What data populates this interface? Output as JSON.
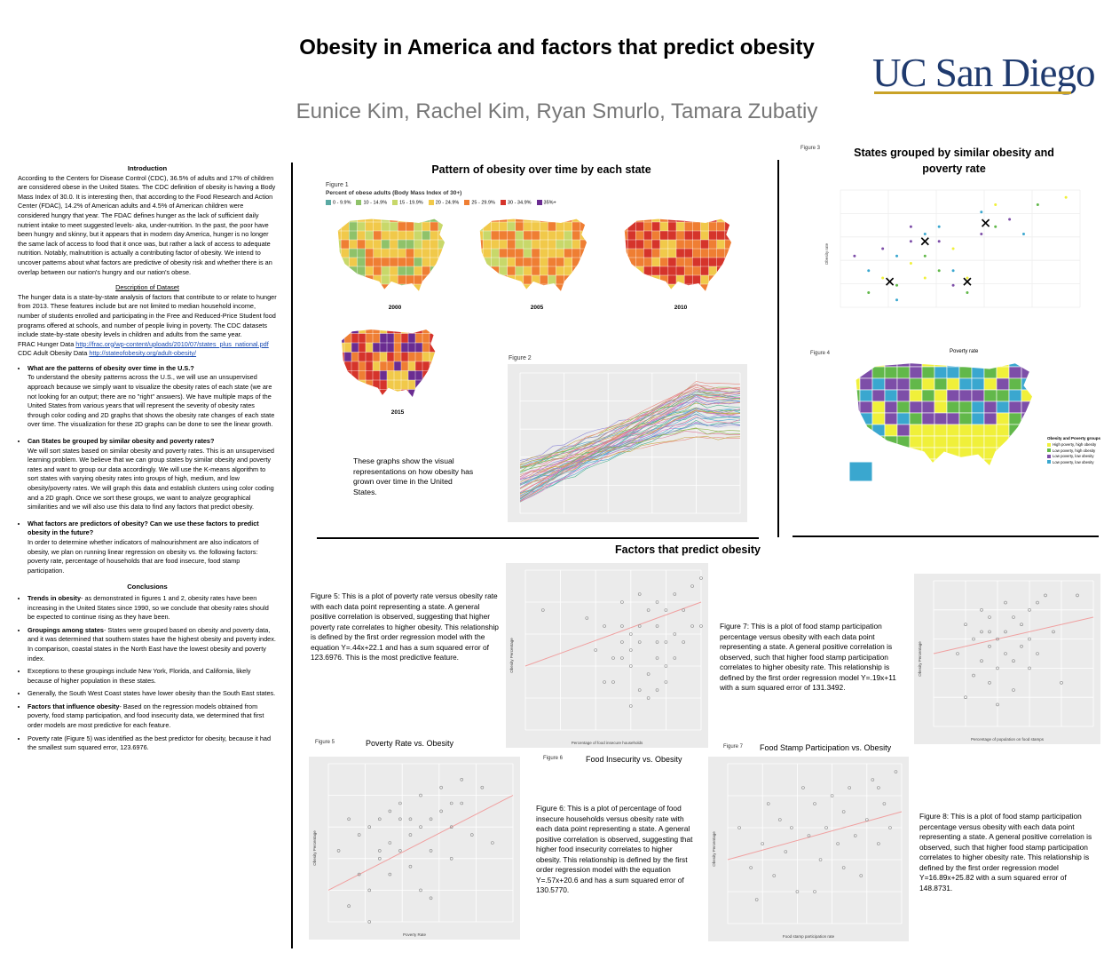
{
  "header": {
    "title": "Obesity in America and factors that predict obesity",
    "authors": "Eunice Kim, Rachel Kim, Ryan Smurlo, Tamara Zubatiy",
    "logo_text": "UC San Diego",
    "logo_color": "#1f3a6e",
    "logo_accent": "#c9a227"
  },
  "left": {
    "intro_heading": "Introduction",
    "intro_text": "According to the Centers for Disease Control (CDC), 36.5% of adults and 17% of children are considered obese in the United States. The CDC definition of obesity is having a Body Mass Index of 30.0. It is interesting then, that according to the Food Research and Action Center (FDAC), 14.2% of American adults and 4.5% of American children were considered hungry that year. The FDAC defines hunger as the lack of sufficient daily nutrient intake to meet suggested levels- aka, under-nutrition. In the past, the poor have been hungry and skinny, but it appears that in modern day America, hunger is no longer the same lack of access to food that it once was, but rather a lack of access to adequate nutrition. Notably, malnutrition is actually a contributing factor of obesity. We intend to uncover patterns about what factors are predictive of obesity risk and whether there is an overlap between our nation's hungry and our nation's obese.",
    "dataset_heading": "Description of Dataset",
    "dataset_text": "The hunger data is a state-by-state analysis of factors that contribute to or relate to hunger from 2013. These features include but are not limited to median household income, number of students enrolled and participating in the Free and Reduced-Price Student food programs offered at schools, and number of people living in poverty. The CDC datasets include state-by-state obesity levels in children and adults from the same year.",
    "frac_label": "FRAC Hunger Data",
    "frac_link": "http://frac.org/wp-content/uploads/2010/07/states_plus_national.pdf",
    "cdc_label": "CDC Adult Obesity Data",
    "cdc_link": "http://stateofobesity.org/adult-obesity/",
    "q1": "What are the patterns of obesity over time in the U.S.?",
    "q1_text": "To understand the obesity patterns across the U.S., we will use an unsupervised approach because we simply want to visualize the obesity rates of each state (we are not looking for an output; there are no \"right\" answers). We have multiple maps of the United States from various years that will represent the severity of obesity rates through color coding and 2D graphs that shows the obesity rate changes of each state over time. The visualization for these 2D graphs can be done to see the linear growth.",
    "q2": "Can States be grouped by similar obesity and poverty rates?",
    "q2_text": "We will sort states based on similar obesity and poverty rates. This is an unsupervised learning problem. We believe that we can group states by similar obesity and poverty rates and want to group our data accordingly. We will use the K-means algorithm to sort states with varying obesity rates into groups of high, medium, and low obesity/poverty rates. We will graph this data and establish clusters using color coding and a 2D graph. Once we sort these groups, we want to analyze geographical similarities and we will also use this data to find any factors that predict obesity.",
    "q3": "What factors are predictors of obesity? Can we use these factors to predict obesity in the future?",
    "q3_text": "In order to determine whether indicators of malnourishment are also indicators of obesity, we plan on running linear regression on obesity vs. the following factors: poverty rate, percentage of households that are food insecure, food stamp participation.",
    "conclusions_heading": "Conclusions",
    "c1_bold": "Trends in obesity",
    "c1": "- as demonstrated in figures 1 and 2, obesity rates have been increasing in the United States since 1990, so we conclude that obesity rates should be expected to continue rising as they have been.",
    "c2_bold": "Groupings among states",
    "c2": "- States were grouped based on obesity and poverty data, and it was determined that southern states have the highest obesity and poverty index. In comparison, coastal states in the North East have the lowest obesity and poverty index.",
    "c3": "Exceptions to these groupings include New York, Florida, and California, likely because of higher population in these states.",
    "c4": "Generally, the South West Coast states have lower obesity than the South East states.",
    "c5_bold": "Factors that influence obesity",
    "c5": "- Based on the regression models obtained from poverty, food stamp participation, and food insecurity data, we determined that first order models are most predictive for each feature.",
    "c6": "Poverty rate (Figure 5) was identified as the best predictor for obesity, because it had the smallest sum squared error, 123.6976."
  },
  "middle": {
    "pattern_title": "Pattern of obesity over time by each state",
    "fig1_label": "Figure 1",
    "fig1_heading": "Percent of obese adults (Body Mass Index of 30+)",
    "legend": [
      {
        "label": "0 - 9.9%",
        "color": "#5aa9a3"
      },
      {
        "label": "10 - 14.9%",
        "color": "#8fc26a"
      },
      {
        "label": "15 - 19.9%",
        "color": "#c8d86a"
      },
      {
        "label": "20 - 24.9%",
        "color": "#f1c94a"
      },
      {
        "label": "25 - 29.9%",
        "color": "#ef7e33"
      },
      {
        "label": "30 - 34.9%",
        "color": "#d5342b"
      },
      {
        "label": "35%+",
        "color": "#6a2c91"
      }
    ],
    "years": [
      "2000",
      "2005",
      "2010",
      "2015"
    ],
    "fig2_label": "Figure 2",
    "fig2_caption": "These graphs show the visual representations on how obesity has grown over time in the United States."
  },
  "right": {
    "fig3_label": "Figure 3",
    "groups_title": "States grouped by similar obesity and poverty rate",
    "fig3_ylabel": "Obesity rate",
    "fig4_label": "Figure 4",
    "fig4_title": "Poverty rate",
    "fig4_legend_title": "Obesity and Poverty groups",
    "fig4_legend": [
      {
        "label": "High poverty, high obesity",
        "color": "#f0f03a"
      },
      {
        "label": "Low poverty, high obesity",
        "color": "#62b84a"
      },
      {
        "label": "Low poverty, low obesity",
        "color": "#7d4ea8"
      },
      {
        "label": "Low poverty, low obesity",
        "color": "#3aa7cf"
      }
    ]
  },
  "factors": {
    "title": "Factors that predict obesity",
    "fig5_caption": "Figure 5: This is a plot of poverty rate versus obesity rate with each data point representing a state. A general positive correlation is observed, suggesting that higher poverty rate correlates to higher obesity. This relationship is defined by the first order regression model with the equation Y=.44x+22.1 and has a sum squared error of 123.6976. This is the most predictive feature.",
    "fig5_label": "Figure 5",
    "fig5_title": "Poverty Rate vs. Obesity",
    "fig6_label": "Figure 6",
    "fig6_title": "Food Insecurity vs. Obesity",
    "fig6_caption": "Figure 6: This is a plot of percentage of food insecure households versus obesity rate with each data point representing a state. A general positive correlation is observed, suggesting that higher food insecurity correlates to higher obesity. This relationship is defined by the first order regression model with the equation Y=.57x+20.6 and has a sum squared error of 130.5770.",
    "fig7_label": "Figure 7",
    "fig7_title": "Food Stamp Participation vs. Obesity",
    "fig7_caption": "Figure 7: This is a plot of food stamp participation percentage versus obesity with each data point representing a state. A general positive correlation is observed, such that higher food stamp participation correlates to higher obesity rate. This relationship is defined by the first order regression model Y=.19x+11 with a sum squared error of 131.3492.",
    "fig8_caption": "Figure 8: This is a plot of food stamp participation percentage versus obesity with each data point representing a state. A general positive correlation is observed, such that higher food stamp participation correlates to higher obesity rate. This relationship is defined by the first order regression model Y=16.89x+25.82 with a sum squared error of 148.8731.",
    "ylabel": "Obesity Percentage",
    "xlabel_food_insecure": "Percentage of food insecure households",
    "xlabel_poverty": "Poverty Rate",
    "xlabel_food_stamp_pct": "Percentage of population on food stamps",
    "xlabel_food_stamp": "Food stamp participation rate"
  },
  "chart_data": [
    {
      "type": "scatter",
      "name_ref": "fig5_top",
      "xlim": [
        0,
        20
      ],
      "ylim": [
        18,
        38
      ],
      "xticks": [
        "0",
        "2.5",
        "5",
        "7.5",
        "10",
        "12.5",
        "15",
        "17.5",
        "20"
      ],
      "yticks": [
        "20",
        "25",
        "30",
        "35"
      ],
      "points": [
        [
          2,
          33
        ],
        [
          7,
          32
        ],
        [
          9,
          24
        ],
        [
          10,
          27
        ],
        [
          10,
          24
        ],
        [
          11,
          31
        ],
        [
          11,
          29
        ],
        [
          11,
          27
        ],
        [
          12,
          28
        ],
        [
          12,
          30
        ],
        [
          12,
          26
        ],
        [
          13,
          23
        ],
        [
          13,
          29
        ],
        [
          13,
          31
        ],
        [
          14,
          25
        ],
        [
          14,
          22
        ],
        [
          14,
          33
        ],
        [
          15,
          27
        ],
        [
          15,
          29
        ],
        [
          15,
          31
        ],
        [
          15,
          34
        ],
        [
          16,
          26
        ],
        [
          16,
          29
        ],
        [
          16,
          33
        ],
        [
          17,
          27
        ],
        [
          17,
          30
        ],
        [
          17,
          35
        ],
        [
          18,
          29
        ],
        [
          19,
          31
        ],
        [
          19,
          36
        ],
        [
          20,
          37
        ],
        [
          20,
          31
        ],
        [
          11,
          34
        ],
        [
          13,
          35
        ],
        [
          9,
          31
        ],
        [
          8,
          28
        ],
        [
          12,
          21
        ],
        [
          16,
          24
        ],
        [
          18,
          33
        ],
        [
          15,
          23
        ]
      ],
      "line": [
        [
          0,
          26
        ],
        [
          20,
          34
        ]
      ]
    },
    {
      "type": "scatter",
      "name_ref": "fig8_top",
      "xlim": [
        0.05,
        0.25
      ],
      "ylim": [
        18,
        38
      ],
      "points": [
        [
          0.08,
          28
        ],
        [
          0.09,
          32
        ],
        [
          0.1,
          30
        ],
        [
          0.1,
          25
        ],
        [
          0.11,
          31
        ],
        [
          0.11,
          27
        ],
        [
          0.12,
          29
        ],
        [
          0.12,
          33
        ],
        [
          0.12,
          24
        ],
        [
          0.13,
          30
        ],
        [
          0.13,
          26
        ],
        [
          0.14,
          31
        ],
        [
          0.14,
          28
        ],
        [
          0.14,
          35
        ],
        [
          0.15,
          27
        ],
        [
          0.15,
          23
        ],
        [
          0.16,
          32
        ],
        [
          0.16,
          29
        ],
        [
          0.17,
          30
        ],
        [
          0.17,
          34
        ],
        [
          0.18,
          35
        ],
        [
          0.18,
          28
        ],
        [
          0.19,
          36
        ],
        [
          0.2,
          31
        ],
        [
          0.21,
          24
        ],
        [
          0.23,
          36
        ],
        [
          0.09,
          22
        ],
        [
          0.13,
          21
        ],
        [
          0.15,
          33
        ],
        [
          0.11,
          34
        ],
        [
          0.17,
          26
        ],
        [
          0.12,
          31
        ]
      ],
      "line": [
        [
          0.05,
          28
        ],
        [
          0.25,
          33
        ]
      ]
    },
    {
      "type": "scatter",
      "name_ref": "fig5_bottom",
      "xlim": [
        8,
        26
      ],
      "ylim": [
        18,
        38
      ],
      "points": [
        [
          9,
          27
        ],
        [
          10,
          31
        ],
        [
          11,
          24
        ],
        [
          11,
          29
        ],
        [
          12,
          22
        ],
        [
          12,
          30
        ],
        [
          13,
          31
        ],
        [
          13,
          26
        ],
        [
          14,
          32
        ],
        [
          14,
          28
        ],
        [
          14,
          24
        ],
        [
          15,
          31
        ],
        [
          15,
          27
        ],
        [
          15,
          33
        ],
        [
          16,
          29
        ],
        [
          16,
          25
        ],
        [
          17,
          34
        ],
        [
          17,
          30
        ],
        [
          17,
          22
        ],
        [
          18,
          31
        ],
        [
          18,
          27
        ],
        [
          19,
          35
        ],
        [
          19,
          32
        ],
        [
          20,
          30
        ],
        [
          20,
          26
        ],
        [
          21,
          33
        ],
        [
          21,
          36
        ],
        [
          22,
          29
        ],
        [
          23,
          35
        ],
        [
          24,
          28
        ],
        [
          12,
          18
        ],
        [
          13,
          27
        ],
        [
          16,
          31
        ],
        [
          18,
          21
        ],
        [
          20,
          33
        ],
        [
          10,
          20
        ]
      ],
      "line": [
        [
          8,
          22
        ],
        [
          26,
          34
        ]
      ]
    },
    {
      "type": "scatter",
      "name_ref": "fig7_bottom",
      "xlim": [
        70,
        100
      ],
      "ylim": [
        18,
        38
      ],
      "points": [
        [
          72,
          30
        ],
        [
          74,
          25
        ],
        [
          76,
          28
        ],
        [
          77,
          33
        ],
        [
          78,
          24
        ],
        [
          79,
          31
        ],
        [
          80,
          27
        ],
        [
          81,
          30
        ],
        [
          82,
          22
        ],
        [
          83,
          35
        ],
        [
          84,
          29
        ],
        [
          85,
          33
        ],
        [
          86,
          26
        ],
        [
          87,
          30
        ],
        [
          88,
          34
        ],
        [
          89,
          28
        ],
        [
          90,
          32
        ],
        [
          91,
          35
        ],
        [
          92,
          29
        ],
        [
          93,
          24
        ],
        [
          94,
          31
        ],
        [
          95,
          36
        ],
        [
          96,
          28
        ],
        [
          97,
          33
        ],
        [
          98,
          30
        ],
        [
          99,
          37
        ],
        [
          75,
          21
        ],
        [
          85,
          22
        ],
        [
          90,
          25
        ],
        [
          96,
          35
        ]
      ],
      "line": [
        [
          70,
          26
        ],
        [
          100,
          32
        ]
      ]
    },
    {
      "type": "scatter",
      "name_ref": "fig3_kmeans",
      "xlim": [
        8,
        25
      ],
      "ylim": [
        20,
        36
      ],
      "centroids": [
        [
          11.5,
          23.5
        ],
        [
          14,
          29
        ],
        [
          17,
          23.5
        ],
        [
          18.3,
          31.5
        ]
      ],
      "points": [
        [
          9,
          27
        ],
        [
          10,
          25
        ],
        [
          10,
          22
        ],
        [
          11,
          24
        ],
        [
          11,
          28
        ],
        [
          12,
          21
        ],
        [
          12,
          23
        ],
        [
          13,
          26
        ],
        [
          13,
          29
        ],
        [
          14,
          30
        ],
        [
          14,
          27
        ],
        [
          14,
          24
        ],
        [
          15,
          29
        ],
        [
          15,
          31
        ],
        [
          15,
          25
        ],
        [
          16,
          28
        ],
        [
          16,
          23
        ],
        [
          16,
          25
        ],
        [
          17,
          22
        ],
        [
          17,
          24
        ],
        [
          18,
          30
        ],
        [
          18,
          33
        ],
        [
          19,
          31
        ],
        [
          19,
          34
        ],
        [
          20,
          32
        ],
        [
          21,
          30
        ],
        [
          22,
          34
        ],
        [
          24,
          35
        ],
        [
          13,
          31
        ],
        [
          12,
          27
        ]
      ]
    }
  ]
}
